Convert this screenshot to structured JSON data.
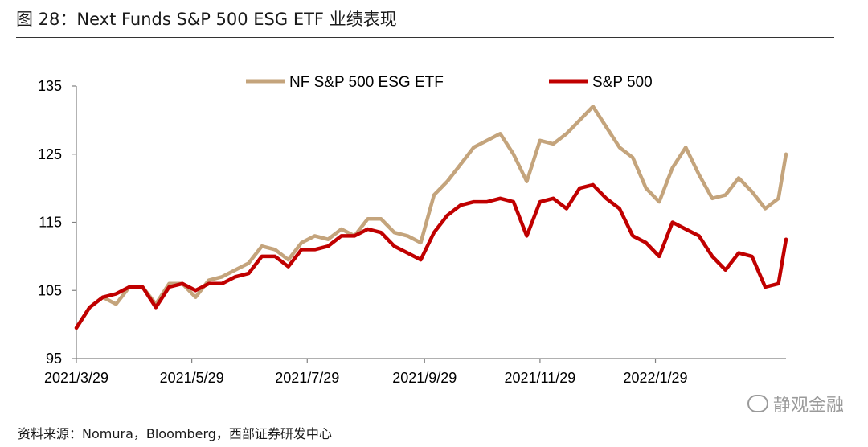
{
  "header": {
    "title": "图 28：Next Funds S&P 500 ESG ETF 业绩表现"
  },
  "footer": {
    "source": "资料来源：Nomura，Bloomberg，西部证券研发中心",
    "watermark": "静观金融"
  },
  "colors": {
    "etf": "#c4a47c",
    "sp500": "#c00000",
    "axis": "#808080"
  },
  "chart_data": {
    "type": "line",
    "ylim": [
      95,
      135
    ],
    "yticks": [
      95,
      105,
      115,
      125,
      135
    ],
    "xticks": [
      "2021/3/29",
      "2021/5/29",
      "2021/7/29",
      "2021/9/29",
      "2021/11/29",
      "2022/1/29"
    ],
    "x_start": "2021/3/29",
    "x_end": "2022/4/8",
    "legend_position": "top",
    "series": [
      {
        "name": "NF S&P 500 ESG ETF",
        "x": [
          "2021/3/29",
          "2021/4/5",
          "2021/4/12",
          "2021/4/19",
          "2021/4/26",
          "2021/5/3",
          "2021/5/10",
          "2021/5/17",
          "2021/5/24",
          "2021/5/31",
          "2021/6/7",
          "2021/6/14",
          "2021/6/21",
          "2021/6/28",
          "2021/7/5",
          "2021/7/12",
          "2021/7/19",
          "2021/7/26",
          "2021/8/2",
          "2021/8/9",
          "2021/8/16",
          "2021/8/23",
          "2021/8/30",
          "2021/9/6",
          "2021/9/13",
          "2021/9/20",
          "2021/9/27",
          "2021/10/4",
          "2021/10/11",
          "2021/10/18",
          "2021/10/25",
          "2021/11/1",
          "2021/11/8",
          "2021/11/15",
          "2021/11/22",
          "2021/11/29",
          "2021/12/6",
          "2021/12/13",
          "2021/12/20",
          "2021/12/27",
          "2022/1/3",
          "2022/1/10",
          "2022/1/17",
          "2022/1/24",
          "2022/1/31",
          "2022/2/7",
          "2022/2/14",
          "2022/2/21",
          "2022/2/28",
          "2022/3/7",
          "2022/3/14",
          "2022/3/21",
          "2022/3/28",
          "2022/4/4",
          "2022/4/8"
        ],
        "values": [
          99.5,
          102.5,
          104,
          103,
          105.5,
          105.5,
          103,
          106,
          106,
          104,
          106.5,
          107,
          108,
          109,
          111.5,
          111,
          109.5,
          112,
          113,
          112.5,
          114,
          113,
          115.5,
          115.5,
          113.5,
          113,
          112,
          119,
          121,
          123.5,
          126,
          127,
          128,
          125,
          121,
          127,
          126.5,
          128,
          130,
          132,
          129,
          126,
          124.5,
          120,
          118,
          123,
          126,
          122,
          118.5,
          119,
          121.5,
          119.5,
          117,
          118.5,
          125
        ]
      },
      {
        "name": "S&P 500",
        "x": [
          "2021/3/29",
          "2021/4/5",
          "2021/4/12",
          "2021/4/19",
          "2021/4/26",
          "2021/5/3",
          "2021/5/10",
          "2021/5/17",
          "2021/5/24",
          "2021/5/31",
          "2021/6/7",
          "2021/6/14",
          "2021/6/21",
          "2021/6/28",
          "2021/7/5",
          "2021/7/12",
          "2021/7/19",
          "2021/7/26",
          "2021/8/2",
          "2021/8/9",
          "2021/8/16",
          "2021/8/23",
          "2021/8/30",
          "2021/9/6",
          "2021/9/13",
          "2021/9/20",
          "2021/9/27",
          "2021/10/4",
          "2021/10/11",
          "2021/10/18",
          "2021/10/25",
          "2021/11/1",
          "2021/11/8",
          "2021/11/15",
          "2021/11/22",
          "2021/11/29",
          "2021/12/6",
          "2021/12/13",
          "2021/12/20",
          "2021/12/27",
          "2022/1/3",
          "2022/1/10",
          "2022/1/17",
          "2022/1/24",
          "2022/1/31",
          "2022/2/7",
          "2022/2/14",
          "2022/2/21",
          "2022/2/28",
          "2022/3/7",
          "2022/3/14",
          "2022/3/21",
          "2022/3/28",
          "2022/4/4",
          "2022/4/8"
        ],
        "values": [
          99.5,
          102.5,
          104,
          104.5,
          105.5,
          105.5,
          102.5,
          105.5,
          106,
          105,
          106,
          106,
          107,
          107.5,
          110,
          110,
          108.5,
          111,
          111,
          111.5,
          113,
          113,
          114,
          113.5,
          111.5,
          110.5,
          109.5,
          113.5,
          116,
          117.5,
          118,
          118,
          118.5,
          118,
          113,
          118,
          118.5,
          117,
          120,
          120.5,
          118.5,
          117,
          113,
          112,
          110,
          115,
          114,
          113,
          110,
          108,
          110.5,
          110,
          105.5,
          106,
          112.5
        ]
      }
    ]
  }
}
